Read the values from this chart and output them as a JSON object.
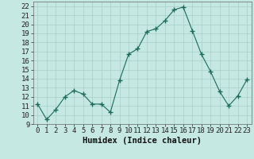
{
  "x": [
    0,
    1,
    2,
    3,
    4,
    5,
    6,
    7,
    8,
    9,
    10,
    11,
    12,
    13,
    14,
    15,
    16,
    17,
    18,
    19,
    20,
    21,
    22,
    23
  ],
  "y": [
    11.2,
    9.5,
    10.6,
    12.0,
    12.7,
    12.3,
    11.2,
    11.2,
    10.3,
    13.8,
    16.7,
    17.3,
    19.2,
    19.5,
    20.4,
    21.6,
    21.9,
    19.3,
    16.7,
    14.8,
    12.6,
    11.0,
    12.1,
    13.9
  ],
  "line_color": "#1a6b5a",
  "marker": "+",
  "marker_size": 5,
  "bg_color": "#c5e8e2",
  "grid_color": "#a8cfc8",
  "xlabel": "Humidex (Indice chaleur)",
  "xlim": [
    -0.5,
    23.5
  ],
  "ylim": [
    9,
    22.5
  ],
  "xtick_labels": [
    "0",
    "1",
    "2",
    "3",
    "4",
    "5",
    "6",
    "7",
    "8",
    "9",
    "10",
    "11",
    "12",
    "13",
    "14",
    "15",
    "16",
    "17",
    "18",
    "19",
    "20",
    "21",
    "22",
    "23"
  ],
  "ytick_values": [
    9,
    10,
    11,
    12,
    13,
    14,
    15,
    16,
    17,
    18,
    19,
    20,
    21,
    22
  ],
  "xlabel_fontsize": 7.5,
  "tick_fontsize": 6.5
}
